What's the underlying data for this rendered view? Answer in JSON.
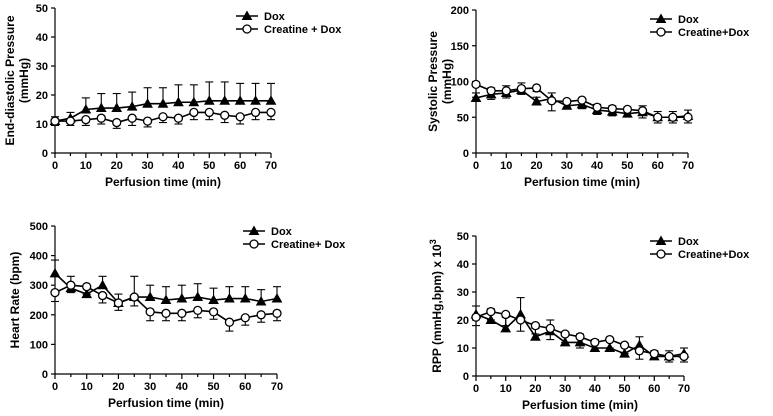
{
  "chart_data": [
    {
      "id": "edp",
      "type": "line",
      "title": "",
      "xlabel": "Perfusion time (min)",
      "ylabel_lines": [
        "End-diastolic Pressure",
        "(mmHg)"
      ],
      "xlim": [
        0,
        70
      ],
      "ylim": [
        0,
        50
      ],
      "xticks": [
        0,
        10,
        20,
        30,
        40,
        50,
        60,
        70
      ],
      "yticks": [
        0,
        10,
        20,
        30,
        40,
        50
      ],
      "x": [
        0,
        5,
        10,
        15,
        20,
        25,
        30,
        35,
        40,
        45,
        50,
        55,
        60,
        65,
        70
      ],
      "series": [
        {
          "name": "Dox",
          "marker": "triangle",
          "values": [
            11,
            12,
            15,
            15.5,
            15.5,
            16,
            17,
            17,
            17.5,
            17.5,
            18,
            18,
            18,
            18,
            18
          ],
          "errors": [
            1.5,
            2,
            4,
            5,
            5,
            5,
            5.5,
            5.5,
            6,
            6,
            6.5,
            6.5,
            6,
            6,
            6
          ]
        },
        {
          "name": "Creatine + Dox",
          "marker": "circle",
          "values": [
            11,
            11,
            11.5,
            12,
            10.5,
            12,
            11,
            12.5,
            12,
            14,
            14,
            13,
            12.5,
            14,
            14
          ],
          "errors": [
            1.5,
            1.5,
            2,
            2,
            2,
            2.5,
            2,
            2,
            2,
            2.5,
            2.5,
            2.5,
            2.5,
            2.5,
            2.5
          ]
        }
      ],
      "legend": {
        "position": "top-right",
        "entries": [
          "Dox",
          "Creatine + Dox"
        ]
      }
    },
    {
      "id": "sp",
      "type": "line",
      "title": "",
      "xlabel": "Perfusion time (min)",
      "ylabel_lines": [
        "Systolic Pressure",
        "(mmHg)"
      ],
      "xlim": [
        0,
        70
      ],
      "ylim": [
        0,
        200
      ],
      "xticks": [
        0,
        10,
        20,
        30,
        40,
        50,
        60,
        70
      ],
      "yticks": [
        0,
        50,
        100,
        150,
        200
      ],
      "x": [
        0,
        5,
        10,
        15,
        20,
        25,
        30,
        35,
        40,
        45,
        50,
        55,
        60,
        65,
        70
      ],
      "series": [
        {
          "name": "Dox",
          "marker": "triangle",
          "values": [
            77,
            82,
            84,
            88,
            72,
            76,
            66,
            68,
            60,
            58,
            55,
            57,
            50,
            50,
            52
          ],
          "errors": [
            7,
            9,
            10,
            10,
            6,
            8,
            7,
            7,
            8,
            8,
            9,
            9,
            8,
            8,
            8
          ]
        },
        {
          "name": "Creatine+Dox",
          "marker": "circle",
          "values": [
            96,
            87,
            87,
            90,
            91,
            73,
            72,
            74,
            64,
            62,
            61,
            59,
            50,
            50,
            50
          ],
          "errors": [
            18,
            12,
            10,
            8,
            5,
            14,
            8,
            12,
            10,
            10,
            10,
            10,
            8,
            8,
            8
          ]
        }
      ],
      "legend": {
        "position": "top-right",
        "entries": [
          "Dox",
          "Creatine+Dox"
        ]
      }
    },
    {
      "id": "hr",
      "type": "line",
      "title": "",
      "xlabel": "Perfusion time (min)",
      "ylabel_lines": [
        "Heart Rate (bpm)"
      ],
      "xlim": [
        0,
        70
      ],
      "ylim": [
        0,
        500
      ],
      "xticks": [
        0,
        10,
        20,
        30,
        40,
        50,
        60,
        70
      ],
      "yticks": [
        0,
        100,
        200,
        300,
        400,
        500
      ],
      "x": [
        0,
        5,
        10,
        15,
        20,
        25,
        30,
        35,
        40,
        45,
        50,
        55,
        60,
        65,
        70
      ],
      "series": [
        {
          "name": "Dox",
          "marker": "triangle",
          "values": [
            340,
            290,
            270,
            300,
            240,
            260,
            260,
            250,
            255,
            260,
            250,
            255,
            255,
            245,
            255
          ],
          "errors": [
            45,
            40,
            30,
            30,
            30,
            70,
            40,
            45,
            45,
            45,
            40,
            40,
            40,
            40,
            40
          ]
        },
        {
          "name": "Creatine+ Dox",
          "marker": "circle",
          "values": [
            275,
            300,
            295,
            265,
            240,
            260,
            210,
            205,
            205,
            215,
            210,
            175,
            190,
            200,
            205
          ],
          "errors": [
            30,
            25,
            25,
            25,
            25,
            30,
            30,
            25,
            25,
            25,
            25,
            30,
            25,
            25,
            25
          ]
        }
      ],
      "legend": {
        "position": "top-right",
        "entries": [
          "Dox",
          "Creatine+ Dox"
        ]
      }
    },
    {
      "id": "rpp",
      "type": "line",
      "title": "",
      "xlabel": "Perfusion time (min)",
      "ylabel_lines": [
        "RPP (mmHg,bpm) x 10"
      ],
      "ylabel_superscript": "3",
      "xlim": [
        0,
        70
      ],
      "ylim": [
        0,
        50
      ],
      "xticks": [
        0,
        10,
        20,
        30,
        40,
        50,
        60,
        70
      ],
      "yticks": [
        0,
        10,
        20,
        30,
        40,
        50
      ],
      "x": [
        0,
        5,
        10,
        15,
        20,
        25,
        30,
        35,
        40,
        45,
        50,
        55,
        60,
        65,
        70
      ],
      "series": [
        {
          "name": "Dox",
          "marker": "triangle",
          "values": [
            22,
            20,
            17,
            22,
            14,
            16,
            12,
            12,
            10,
            10,
            8,
            11,
            7,
            7,
            8
          ],
          "errors": [
            3,
            4,
            4,
            6,
            3,
            4,
            3,
            3,
            3,
            3,
            3,
            3,
            2,
            2,
            2
          ]
        },
        {
          "name": "Creatine+Dox",
          "marker": "circle",
          "values": [
            21,
            23,
            22,
            20,
            18,
            17,
            15,
            14,
            12,
            13,
            11,
            9,
            8,
            7,
            7
          ],
          "errors": [
            3,
            3,
            4,
            4,
            3,
            4,
            3,
            4,
            3,
            3,
            3,
            3,
            2,
            2,
            2
          ]
        }
      ],
      "legend": {
        "position": "top-right",
        "entries": [
          "Dox",
          "Creatine+Dox"
        ]
      }
    }
  ]
}
